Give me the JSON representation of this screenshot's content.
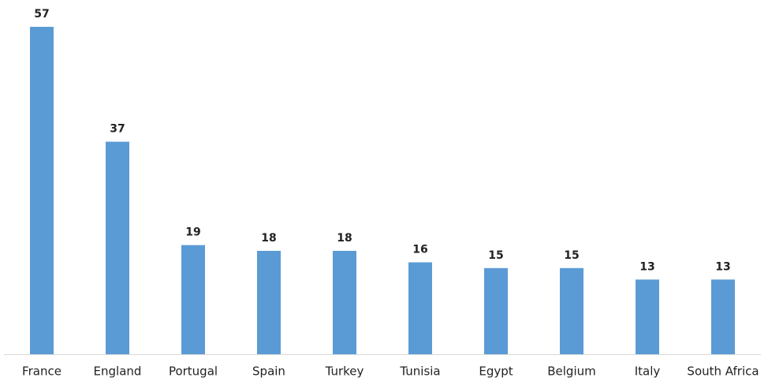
{
  "chart_data": {
    "type": "bar",
    "categories": [
      "France",
      "England",
      "Portugal",
      "Spain",
      "Turkey",
      "Tunisia",
      "Egypt",
      "Belgium",
      "Italy",
      "South Africa"
    ],
    "values": [
      57,
      37,
      19,
      18,
      18,
      16,
      15,
      15,
      13,
      13
    ],
    "color": "#5b9bd5"
  }
}
